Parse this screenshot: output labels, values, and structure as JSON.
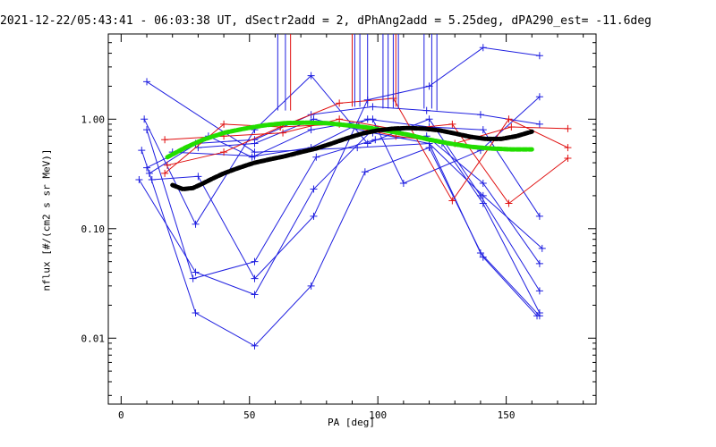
{
  "chart_data": {
    "type": "scatter",
    "title": "2021-12-22/05:43:41 - 06:03:38 UT, dSectr2add = 2, dPhAng2add = 5.25deg, dPA290_est= -11.6deg",
    "xlabel": "PA [deg]",
    "ylabel": "nflux [#/(cm2 s sr MeV)]",
    "xlim": [
      -5,
      185
    ],
    "ylim": [
      0.0025,
      6
    ],
    "yscale": "log",
    "grid": false,
    "x_ticks": [
      "0",
      "50",
      "100",
      "150"
    ],
    "y_ticks": [
      "0.01",
      "0.10",
      "1.00"
    ],
    "colors": {
      "blue": "#1f1fe0",
      "red": "#e01010",
      "green": "#22dd00",
      "black": "#000000"
    },
    "blue_lines": [
      [
        [
          10,
          2.2
        ],
        [
          52,
          0.5
        ],
        [
          92,
          0.55
        ],
        [
          120,
          0.6
        ],
        [
          140,
          0.06
        ],
        [
          163,
          0.016
        ]
      ],
      [
        [
          9,
          1.0
        ],
        [
          29,
          0.11
        ],
        [
          52,
          0.8
        ],
        [
          74,
          2.5
        ],
        [
          96,
          0.6
        ],
        [
          120,
          1.0
        ],
        [
          140,
          0.2
        ],
        [
          163,
          0.027
        ]
      ],
      [
        [
          10,
          0.8
        ],
        [
          28,
          0.035
        ],
        [
          52,
          0.05
        ],
        [
          76,
          0.45
        ],
        [
          99,
          0.65
        ],
        [
          119,
          0.7
        ],
        [
          141,
          0.26
        ],
        [
          163,
          0.048
        ]
      ],
      [
        [
          7,
          0.28
        ],
        [
          29,
          0.04
        ],
        [
          52,
          0.025
        ],
        [
          75,
          0.23
        ],
        [
          99,
          0.85
        ],
        [
          125,
          0.6
        ],
        [
          141,
          0.17
        ],
        [
          163,
          0.017
        ]
      ],
      [
        [
          8,
          0.52
        ],
        [
          29,
          0.017
        ],
        [
          52,
          0.0085
        ],
        [
          74,
          0.03
        ],
        [
          95,
          0.33
        ],
        [
          120,
          0.55
        ],
        [
          141,
          0.055
        ],
        [
          162,
          0.016
        ]
      ],
      [
        [
          10,
          0.36
        ],
        [
          29,
          0.6
        ],
        [
          52,
          0.65
        ],
        [
          74,
          1.1
        ],
        [
          98,
          1.3
        ],
        [
          119,
          1.2
        ],
        [
          140,
          1.1
        ],
        [
          163,
          0.9
        ]
      ],
      [
        [
          12,
          0.28
        ],
        [
          30,
          0.3
        ],
        [
          52,
          0.035
        ],
        [
          75,
          0.13
        ],
        [
          96,
          1.5
        ],
        [
          120,
          2.0
        ],
        [
          141,
          4.5
        ],
        [
          163,
          3.8
        ]
      ],
      [
        [
          11,
          0.32
        ],
        [
          34,
          0.7
        ],
        [
          51,
          0.45
        ],
        [
          74,
          0.8
        ],
        [
          98,
          1.0
        ],
        [
          110,
          0.26
        ],
        [
          140,
          0.52
        ],
        [
          163,
          1.6
        ]
      ],
      [
        [
          20,
          0.5
        ],
        [
          52,
          0.46
        ],
        [
          74,
          0.55
        ],
        [
          96,
          1.0
        ],
        [
          120,
          0.85
        ],
        [
          141,
          0.8
        ],
        [
          163,
          0.13
        ]
      ],
      [
        [
          30,
          0.55
        ],
        [
          52,
          0.6
        ],
        [
          75,
          1.0
        ],
        [
          98,
          0.75
        ],
        [
          120,
          0.6
        ],
        [
          141,
          0.2
        ],
        [
          164,
          0.066
        ]
      ]
    ],
    "red_lines": [
      [
        [
          17,
          0.32
        ],
        [
          40,
          0.9
        ],
        [
          62,
          0.85
        ],
        [
          85,
          1.4
        ],
        [
          106,
          1.55
        ],
        [
          129,
          0.18
        ],
        [
          151,
          1.0
        ],
        [
          174,
          0.55
        ]
      ],
      [
        [
          17,
          0.65
        ],
        [
          40,
          0.7
        ],
        [
          63,
          0.75
        ],
        [
          85,
          1.0
        ],
        [
          108,
          0.8
        ],
        [
          129,
          0.9
        ],
        [
          151,
          0.17
        ],
        [
          174,
          0.44
        ]
      ],
      [
        [
          18,
          0.38
        ],
        [
          40,
          0.5
        ],
        [
          62,
          0.85
        ],
        [
          85,
          0.9
        ],
        [
          107,
          0.7
        ],
        [
          130,
          0.6
        ],
        [
          152,
          0.85
        ],
        [
          174,
          0.82
        ]
      ]
    ],
    "blue_spikes": [
      [
        61,
        1.2
      ],
      [
        64,
        1.2
      ],
      [
        91,
        1.3
      ],
      [
        93,
        1.3
      ],
      [
        96,
        1.3
      ],
      [
        102,
        1.25
      ],
      [
        104,
        1.25
      ],
      [
        106,
        1.25
      ],
      [
        108,
        1.25
      ],
      [
        118,
        1.25
      ],
      [
        121,
        1.25
      ],
      [
        123,
        1.2
      ]
    ],
    "red_spikes": [
      [
        66,
        1.2
      ],
      [
        90,
        1.3
      ],
      [
        107,
        1.3
      ]
    ],
    "green_curve": {
      "x": [
        18,
        25,
        32,
        40,
        48,
        56,
        64,
        72,
        80,
        88,
        96,
        104,
        112,
        120,
        128,
        136,
        144,
        152,
        160
      ],
      "y": [
        0.45,
        0.55,
        0.65,
        0.75,
        0.82,
        0.88,
        0.92,
        0.93,
        0.92,
        0.88,
        0.84,
        0.78,
        0.72,
        0.65,
        0.6,
        0.56,
        0.54,
        0.53,
        0.53
      ]
    },
    "black_curve": {
      "x": [
        20,
        24,
        28,
        32,
        36,
        40,
        46,
        52,
        58,
        64,
        70,
        76,
        82,
        88,
        94,
        100,
        106,
        112,
        118,
        124,
        130,
        136,
        142,
        148,
        154,
        160
      ],
      "y": [
        0.25,
        0.23,
        0.235,
        0.26,
        0.29,
        0.32,
        0.36,
        0.4,
        0.43,
        0.46,
        0.5,
        0.54,
        0.6,
        0.67,
        0.74,
        0.79,
        0.82,
        0.83,
        0.82,
        0.79,
        0.74,
        0.69,
        0.66,
        0.66,
        0.7,
        0.77
      ]
    }
  }
}
